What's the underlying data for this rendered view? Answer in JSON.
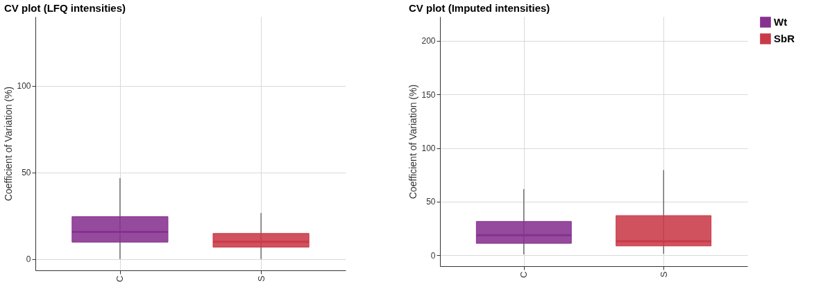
{
  "chart_data": [
    {
      "type": "box",
      "title": "CV plot (LFQ intensities)",
      "ylabel": "Coefficient of Variation (%)",
      "categories": [
        "C",
        "S"
      ],
      "ylim": [
        -6.5,
        140
      ],
      "yticks": [
        0,
        50,
        100
      ],
      "grid": true,
      "legend": "right",
      "series": [
        {
          "name": "Wt",
          "color": "#86318f",
          "boxes": [
            {
              "low": 0,
              "q1": 9.8,
              "median": 15.7,
              "q3": 24.5,
              "high": 46.7
            },
            null
          ]
        },
        {
          "name": "SbR",
          "color": "#c93a48",
          "boxes": [
            null,
            {
              "low": 0,
              "q1": 6.9,
              "median": 10,
              "q3": 14.8,
              "high": 26.6
            }
          ]
        }
      ]
    },
    {
      "type": "box",
      "title": "CV plot (Imputed intensities)",
      "ylabel": "Coefficient of Variation (%)",
      "categories": [
        "C",
        "S"
      ],
      "ylim": [
        -10.3,
        222.6
      ],
      "yticks": [
        0,
        50,
        100,
        150,
        200
      ],
      "grid": true,
      "legend": "right",
      "series": [
        {
          "name": "Wt",
          "color": "#86318f",
          "boxes": [
            {
              "low": 0.7,
              "q1": 11,
              "median": 18.7,
              "q3": 31.5,
              "high": 61.7
            },
            null
          ]
        },
        {
          "name": "SbR",
          "color": "#c93a48",
          "boxes": [
            null,
            {
              "low": 1.2,
              "q1": 8.6,
              "median": 13,
              "q3": 36.9,
              "high": 79.4
            }
          ]
        }
      ]
    }
  ]
}
